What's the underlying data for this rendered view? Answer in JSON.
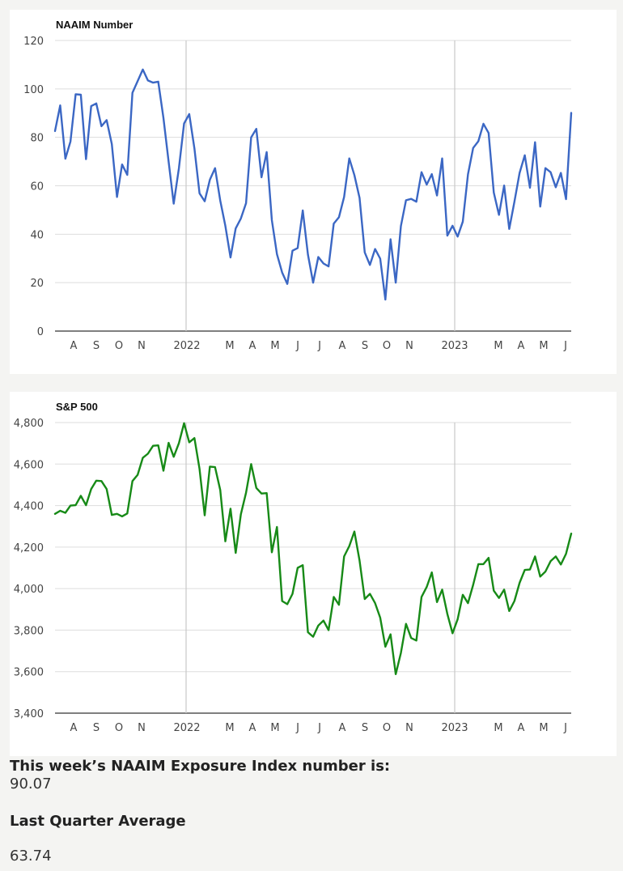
{
  "chart_data": [
    {
      "type": "line",
      "title": "NAAIM Number",
      "color": "#3b67c4",
      "ylim": [
        0,
        120
      ],
      "yticks": [
        0,
        20,
        40,
        60,
        80,
        100,
        120
      ],
      "grid": true,
      "xticks": [
        "A",
        "S",
        "O",
        "N",
        "2022",
        "M",
        "A",
        "M",
        "J",
        "J",
        "A",
        "S",
        "O",
        "N",
        "2023",
        "M",
        "A",
        "M",
        "J"
      ],
      "series": [
        {
          "values": [
            82.6,
            93.2,
            71.2,
            78.3,
            97.8,
            97.6,
            71.0,
            92.9,
            94.0,
            84.6,
            87.1,
            77.2,
            55.4,
            68.8,
            64.5,
            98.4,
            103.2,
            108.0,
            103.5,
            102.6,
            103.0,
            88.0,
            70.0,
            52.6,
            67.2,
            85.7,
            89.6,
            75.4,
            56.9,
            53.6,
            62.5,
            67.3,
            53.9,
            43.5,
            30.4,
            42.4,
            46.5,
            52.8,
            80.0,
            83.5,
            63.5,
            73.9,
            45.8,
            31.8,
            24.2,
            19.5,
            33.2,
            34.3,
            49.8,
            31.6,
            20.0,
            30.6,
            27.9,
            26.7,
            44.4,
            47.0,
            55.4,
            71.3,
            64.4,
            55.0,
            32.5,
            27.3,
            33.9,
            29.9,
            13.0,
            37.9,
            20.0,
            43.4,
            54.0,
            54.6,
            53.4,
            65.6,
            60.5,
            64.8,
            56.0,
            71.3,
            39.4,
            43.5,
            39.0,
            45.2,
            64.7,
            75.6,
            78.4,
            85.6,
            81.8,
            57.2,
            48.0,
            60.1,
            42.2,
            53.4,
            65.3,
            72.6,
            59.2,
            78.0,
            51.4,
            67.3,
            65.6,
            59.4,
            65.3,
            54.5,
            90.07
          ]
        }
      ]
    },
    {
      "type": "line",
      "title": "S&P 500",
      "color": "#178a17",
      "ylim": [
        3400,
        4800
      ],
      "yticks": [
        "3,400",
        "3,600",
        "3,800",
        "4,000",
        "4,200",
        "4,400",
        "4,600",
        "4,800"
      ],
      "grid": true,
      "xticks": [
        "A",
        "S",
        "O",
        "N",
        "2022",
        "M",
        "A",
        "M",
        "J",
        "J",
        "A",
        "S",
        "O",
        "N",
        "2023",
        "M",
        "A",
        "M",
        "J"
      ],
      "series": [
        {
          "values": [
            4360,
            4375,
            4365,
            4400,
            4402,
            4447,
            4402,
            4480,
            4520,
            4518,
            4480,
            4355,
            4360,
            4348,
            4362,
            4518,
            4548,
            4630,
            4650,
            4688,
            4690,
            4568,
            4702,
            4635,
            4700,
            4797,
            4705,
            4725,
            4577,
            4353,
            4588,
            4585,
            4475,
            4228,
            4385,
            4172,
            4358,
            4462,
            4600,
            4485,
            4458,
            4460,
            4175,
            4297,
            3940,
            3925,
            3975,
            4100,
            4113,
            3790,
            3768,
            3822,
            3846,
            3800,
            3960,
            3922,
            4155,
            4205,
            4275,
            4135,
            3950,
            3975,
            3930,
            3860,
            3720,
            3780,
            3588,
            3690,
            3830,
            3762,
            3750,
            3960,
            4008,
            4078,
            3935,
            3995,
            3878,
            3785,
            3852,
            3970,
            3930,
            4018,
            4118,
            4118,
            4148,
            3990,
            3955,
            3995,
            3892,
            3940,
            4028,
            4090,
            4092,
            4155,
            4058,
            4082,
            4132,
            4155,
            4116,
            4168,
            4265
          ]
        }
      ]
    }
  ],
  "stats": {
    "weekly_label": "This week’s NAAIM Exposure Index number is:",
    "weekly_value": "90.07",
    "quarter_label": "Last Quarter Average",
    "quarter_value": "63.74"
  }
}
